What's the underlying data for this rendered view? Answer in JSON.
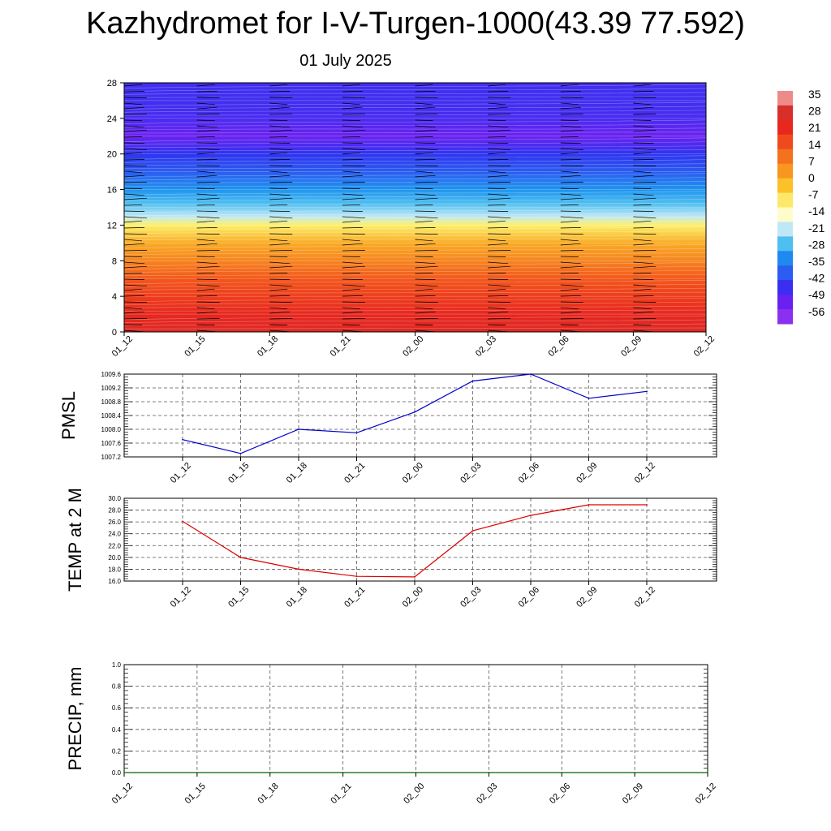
{
  "header": {
    "title": "Kazhydromet for I-V-Turgen-1000(43.39 77.592)",
    "date": "01 July 2025"
  },
  "chart_data": [
    {
      "type": "heatmap",
      "name": "temperature-height-section",
      "x_categories": [
        "01_12",
        "01_15",
        "01_18",
        "01_21",
        "02_00",
        "02_03",
        "02_06",
        "02_09",
        "02_12"
      ],
      "y_ticks": [
        "0",
        "4",
        "8",
        "12",
        "16",
        "20",
        "24",
        "28"
      ],
      "ylim": [
        0,
        28
      ],
      "colorbar_labels": [
        "35",
        "28",
        "21",
        "14",
        "7",
        "0",
        "-7",
        "-14",
        "-21",
        "-28",
        "-35",
        "-42",
        "-49",
        "-56"
      ],
      "colorbar_colors": [
        "#ee8a8a",
        "#d7302b",
        "#e8281f",
        "#f04a1c",
        "#f4711e",
        "#f8961f",
        "#fcc12a",
        "#fde869",
        "#fffccc",
        "#bfe8f6",
        "#4fbef0",
        "#1e8af0",
        "#2c5cf0",
        "#3a2ef0",
        "#6a20f0",
        "#8b30f0"
      ],
      "profile": [
        {
          "h": 0,
          "t": 26
        },
        {
          "h": 2,
          "t": 22
        },
        {
          "h": 4,
          "t": 16
        },
        {
          "h": 6,
          "t": 11
        },
        {
          "h": 8,
          "t": 4
        },
        {
          "h": 10,
          "t": -2
        },
        {
          "h": 12,
          "t": -10
        },
        {
          "h": 13,
          "t": -18
        },
        {
          "h": 14.5,
          "t": -26
        },
        {
          "h": 16,
          "t": -33
        },
        {
          "h": 18,
          "t": -41
        },
        {
          "h": 20,
          "t": -48
        },
        {
          "h": 22,
          "t": -55
        },
        {
          "h": 24,
          "t": -51
        },
        {
          "h": 26,
          "t": -50
        },
        {
          "h": 28,
          "t": -50
        }
      ]
    },
    {
      "type": "line",
      "name": "pmsl",
      "ylabel": "PMSL",
      "categories": [
        "01_12",
        "01_15",
        "01_18",
        "01_21",
        "02_00",
        "02_03",
        "02_06",
        "02_09",
        "02_12"
      ],
      "series": [
        {
          "values": [
            1007.7,
            1007.3,
            1008.0,
            1007.9,
            1008.5,
            1009.4,
            1009.6,
            1008.9,
            1009.1
          ],
          "color": "#0000cc"
        }
      ],
      "y_ticks": [
        "1007.2",
        "1007.6",
        "1008.0",
        "1008.4",
        "1008.8",
        "1009.2",
        "1009.6"
      ],
      "ylim": [
        1007.2,
        1009.6
      ],
      "grid": true
    },
    {
      "type": "line",
      "name": "temp-2m",
      "ylabel": "TEMP at 2 M",
      "categories": [
        "01_12",
        "01_15",
        "01_18",
        "01_21",
        "02_00",
        "02_03",
        "02_06",
        "02_09",
        "02_12"
      ],
      "series": [
        {
          "values": [
            26.1,
            20.0,
            18.0,
            16.8,
            16.7,
            24.5,
            27.1,
            28.9,
            28.9
          ],
          "color": "#dd0000"
        }
      ],
      "y_ticks": [
        "16.0",
        "18.0",
        "20.0",
        "22.0",
        "24.0",
        "26.0",
        "28.0",
        "30.0"
      ],
      "ylim": [
        16.0,
        30.0
      ],
      "grid": true
    },
    {
      "type": "line",
      "name": "precip",
      "ylabel": "PRECIP, mm",
      "categories": [
        "01_12",
        "01_15",
        "01_18",
        "01_21",
        "02_00",
        "02_03",
        "02_06",
        "02_09",
        "02_12"
      ],
      "series": [
        {
          "values": [
            0,
            0,
            0,
            0,
            0,
            0,
            0,
            0,
            0
          ],
          "color": "#006600"
        }
      ],
      "y_ticks": [
        "0.0",
        "0.2",
        "0.4",
        "0.6",
        "0.8",
        "1.0"
      ],
      "ylim": [
        0,
        1.0
      ],
      "grid": true
    }
  ]
}
